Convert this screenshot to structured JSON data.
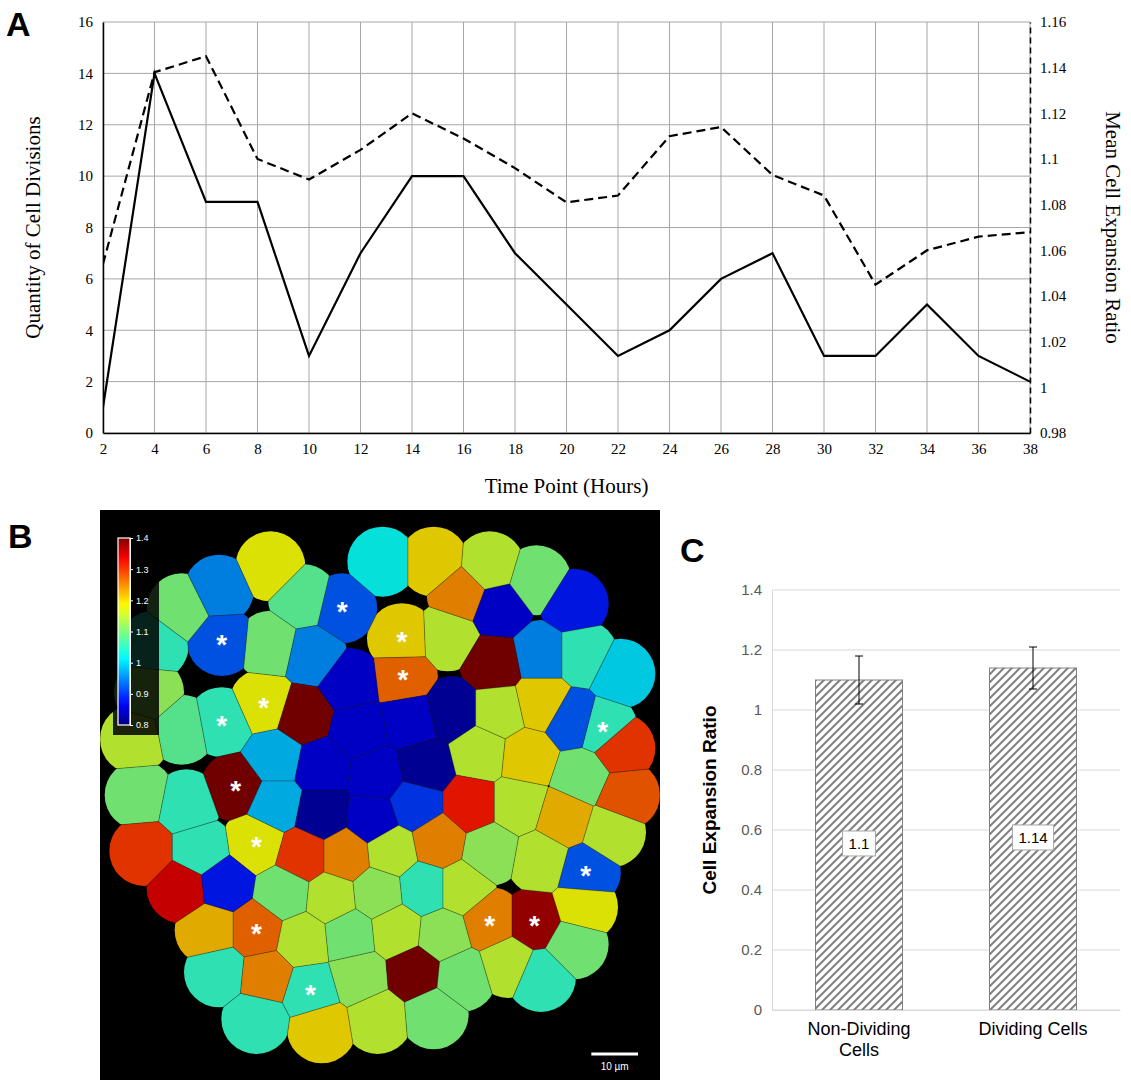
{
  "chart_data": [
    {
      "panel_label": "A",
      "type": "line",
      "x": [
        2,
        4,
        6,
        8,
        10,
        12,
        14,
        16,
        18,
        20,
        22,
        24,
        26,
        28,
        30,
        32,
        34,
        36,
        38
      ],
      "xlabel": "Time Point (Hours)",
      "ylabel": "Quantity of Cell Divisions",
      "y2label": "Mean Cell Expansion Ratio",
      "xlim": [
        2,
        38
      ],
      "xticks": [
        2,
        4,
        6,
        8,
        10,
        12,
        14,
        16,
        18,
        20,
        22,
        24,
        26,
        28,
        30,
        32,
        34,
        36,
        38
      ],
      "ylim": [
        0,
        16
      ],
      "yticks": [
        0,
        2,
        4,
        6,
        8,
        10,
        12,
        14,
        16
      ],
      "y2lim": [
        0.98,
        1.16
      ],
      "y2ticks": [
        0.98,
        1,
        1.02,
        1.04,
        1.06,
        1.08,
        1.1,
        1.12,
        1.14,
        1.16
      ],
      "grid": true,
      "series": [
        {
          "color": "#000000",
          "line_style": "solid",
          "values": [
            1,
            14,
            9,
            9,
            3,
            7,
            10,
            10,
            7,
            5,
            3,
            4,
            6,
            7,
            3,
            3,
            5,
            3,
            2
          ]
        },
        {
          "color": "#000000",
          "line_style": "dashed",
          "axis": "y2",
          "values": [
            1.054,
            1.138,
            1.145,
            1.1,
            1.091,
            1.104,
            1.12,
            1.109,
            1.096,
            1.081,
            1.084,
            1.11,
            1.114,
            1.093,
            1.084,
            1.045,
            1.06,
            1.066,
            1.068
          ]
        }
      ]
    },
    {
      "panel_label": "B",
      "type": "cell_map",
      "marker_label": "*",
      "colorbar": {
        "range": [
          0.8,
          1.4
        ],
        "ticks": [
          0.8,
          0.9,
          1,
          1.1,
          1.2,
          1.3,
          1.4
        ]
      },
      "scale_bar": {
        "value": 10,
        "label": "10 µm"
      },
      "cells": [
        {
          "x": 48.4,
          "y": 16,
          "value": 0.92,
          "marked": true
        },
        {
          "x": 22.6,
          "y": 23,
          "value": 0.92,
          "marked": true
        },
        {
          "x": 61.2,
          "y": 22.4,
          "value": 1.2,
          "marked": true
        },
        {
          "x": 31.6,
          "y": 36.4,
          "value": 1.18,
          "marked": true
        },
        {
          "x": 22.6,
          "y": 40.4,
          "value": 1.05,
          "marked": true
        },
        {
          "x": 61.4,
          "y": 30.6,
          "value": 1.27,
          "marked": true
        },
        {
          "x": 104.2,
          "y": 41.6,
          "value": 1.05,
          "marked": true
        },
        {
          "x": 25.6,
          "y": 54.2,
          "value": 1.4,
          "marked": true
        },
        {
          "x": 30,
          "y": 66.2,
          "value": 1.18,
          "marked": true
        },
        {
          "x": 100.6,
          "y": 72.6,
          "value": 0.92,
          "marked": true
        },
        {
          "x": 30,
          "y": 85,
          "value": 1.27,
          "marked": true
        },
        {
          "x": 80,
          "y": 83.2,
          "value": 1.25,
          "marked": true
        },
        {
          "x": 89.6,
          "y": 83.2,
          "value": 1.38,
          "marked": true
        },
        {
          "x": 41.6,
          "y": 98,
          "value": 1.05,
          "marked": true
        },
        {
          "x": 33,
          "y": 7,
          "value": 1.18,
          "marked": false
        },
        {
          "x": 40,
          "y": 14,
          "value": 1.08,
          "marked": false
        },
        {
          "x": 57,
          "y": 6,
          "value": 1.02,
          "marked": false
        },
        {
          "x": 68,
          "y": 6,
          "value": 1.2,
          "marked": false
        },
        {
          "x": 74,
          "y": 13,
          "value": 1.25,
          "marked": false
        },
        {
          "x": 80,
          "y": 7,
          "value": 1.15,
          "marked": false
        },
        {
          "x": 82,
          "y": 16,
          "value": 0.85,
          "marked": false
        },
        {
          "x": 90,
          "y": 10,
          "value": 1.1,
          "marked": false
        },
        {
          "x": 98,
          "y": 15,
          "value": 0.88,
          "marked": false
        },
        {
          "x": 14,
          "y": 16,
          "value": 1.1,
          "marked": false
        },
        {
          "x": 22,
          "y": 12,
          "value": 0.95,
          "marked": false
        },
        {
          "x": 8,
          "y": 24,
          "value": 1.05,
          "marked": false
        },
        {
          "x": 33,
          "y": 24,
          "value": 1.1,
          "marked": false
        },
        {
          "x": 42,
          "y": 26,
          "value": 0.95,
          "marked": false
        },
        {
          "x": 71,
          "y": 22,
          "value": 1.15,
          "marked": false
        },
        {
          "x": 81,
          "y": 28,
          "value": 1.4,
          "marked": false
        },
        {
          "x": 91,
          "y": 26,
          "value": 0.95,
          "marked": false
        },
        {
          "x": 100,
          "y": 26,
          "value": 1.05,
          "marked": false
        },
        {
          "x": 108,
          "y": 30,
          "value": 1.0,
          "marked": false
        },
        {
          "x": 7,
          "y": 34,
          "value": 1.12,
          "marked": false
        },
        {
          "x": 40,
          "y": 39,
          "value": 1.4,
          "marked": false
        },
        {
          "x": 50,
          "y": 32,
          "value": 0.85,
          "marked": false
        },
        {
          "x": 52,
          "y": 42,
          "value": 0.85,
          "marked": false
        },
        {
          "x": 63,
          "y": 40,
          "value": 0.85,
          "marked": false
        },
        {
          "x": 72,
          "y": 38,
          "value": 0.82,
          "marked": false
        },
        {
          "x": 82,
          "y": 38,
          "value": 1.15,
          "marked": false
        },
        {
          "x": 91,
          "y": 36,
          "value": 1.2,
          "marked": false
        },
        {
          "x": 98,
          "y": 40,
          "value": 0.92,
          "marked": false
        },
        {
          "x": 108,
          "y": 46,
          "value": 1.3,
          "marked": false
        },
        {
          "x": 4,
          "y": 44,
          "value": 1.15,
          "marked": false
        },
        {
          "x": 14,
          "y": 42,
          "value": 1.08,
          "marked": false
        },
        {
          "x": 34,
          "y": 48,
          "value": 0.98,
          "marked": false
        },
        {
          "x": 44,
          "y": 50,
          "value": 0.85,
          "marked": false
        },
        {
          "x": 56,
          "y": 52,
          "value": 0.85,
          "marked": false
        },
        {
          "x": 66,
          "y": 50,
          "value": 0.82,
          "marked": false
        },
        {
          "x": 78,
          "y": 47,
          "value": 1.15,
          "marked": false
        },
        {
          "x": 88,
          "y": 48,
          "value": 1.2,
          "marked": false
        },
        {
          "x": 100,
          "y": 52,
          "value": 1.1,
          "marked": false
        },
        {
          "x": 109,
          "y": 56,
          "value": 1.28,
          "marked": false
        },
        {
          "x": 5,
          "y": 56,
          "value": 1.1,
          "marked": false
        },
        {
          "x": 15,
          "y": 58,
          "value": 1.05,
          "marked": false
        },
        {
          "x": 34,
          "y": 58,
          "value": 0.98,
          "marked": false
        },
        {
          "x": 44,
          "y": 60,
          "value": 0.82,
          "marked": false
        },
        {
          "x": 55,
          "y": 61,
          "value": 0.85,
          "marked": false
        },
        {
          "x": 64,
          "y": 58,
          "value": 0.9,
          "marked": false
        },
        {
          "x": 76,
          "y": 58,
          "value": 1.32,
          "marked": false
        },
        {
          "x": 86,
          "y": 58,
          "value": 1.15,
          "marked": false
        },
        {
          "x": 96,
          "y": 61,
          "value": 1.22,
          "marked": false
        },
        {
          "x": 106,
          "y": 64,
          "value": 1.15,
          "marked": false
        },
        {
          "x": 6,
          "y": 68,
          "value": 1.3,
          "marked": false
        },
        {
          "x": 18,
          "y": 68,
          "value": 1.05,
          "marked": false
        },
        {
          "x": 40,
          "y": 69,
          "value": 1.3,
          "marked": false
        },
        {
          "x": 49,
          "y": 69,
          "value": 1.25,
          "marked": false
        },
        {
          "x": 59,
          "y": 68,
          "value": 1.15,
          "marked": false
        },
        {
          "x": 69,
          "y": 66,
          "value": 1.25,
          "marked": false
        },
        {
          "x": 80,
          "y": 68,
          "value": 1.12,
          "marked": false
        },
        {
          "x": 91,
          "y": 70,
          "value": 1.15,
          "marked": false
        },
        {
          "x": 14,
          "y": 76,
          "value": 1.35,
          "marked": false
        },
        {
          "x": 23,
          "y": 75,
          "value": 0.88,
          "marked": false
        },
        {
          "x": 36,
          "y": 77,
          "value": 1.1,
          "marked": false
        },
        {
          "x": 46,
          "y": 78,
          "value": 1.15,
          "marked": false
        },
        {
          "x": 56,
          "y": 77,
          "value": 1.12,
          "marked": false
        },
        {
          "x": 66,
          "y": 76,
          "value": 1.05,
          "marked": false
        },
        {
          "x": 74,
          "y": 76,
          "value": 1.15,
          "marked": false
        },
        {
          "x": 100,
          "y": 80,
          "value": 1.18,
          "marked": false
        },
        {
          "x": 20,
          "y": 85,
          "value": 1.22,
          "marked": false
        },
        {
          "x": 40,
          "y": 87,
          "value": 1.15,
          "marked": false
        },
        {
          "x": 50,
          "y": 86,
          "value": 1.1,
          "marked": false
        },
        {
          "x": 60,
          "y": 85,
          "value": 1.15,
          "marked": false
        },
        {
          "x": 70,
          "y": 86,
          "value": 1.12,
          "marked": false
        },
        {
          "x": 98,
          "y": 88,
          "value": 1.1,
          "marked": false
        },
        {
          "x": 22,
          "y": 94,
          "value": 1.05,
          "marked": false
        },
        {
          "x": 32,
          "y": 95,
          "value": 1.25,
          "marked": false
        },
        {
          "x": 52,
          "y": 95,
          "value": 1.12,
          "marked": false
        },
        {
          "x": 64,
          "y": 94,
          "value": 1.4,
          "marked": false
        },
        {
          "x": 74,
          "y": 95,
          "value": 1.1,
          "marked": false
        },
        {
          "x": 84,
          "y": 92,
          "value": 1.15,
          "marked": false
        },
        {
          "x": 91,
          "y": 95,
          "value": 1.05,
          "marked": false
        },
        {
          "x": 30,
          "y": 104,
          "value": 1.05,
          "marked": false
        },
        {
          "x": 44,
          "y": 106,
          "value": 1.2,
          "marked": false
        },
        {
          "x": 56,
          "y": 104,
          "value": 1.15,
          "marked": false
        },
        {
          "x": 68,
          "y": 103,
          "value": 1.1,
          "marked": false
        }
      ]
    },
    {
      "panel_label": "C",
      "type": "bar",
      "categories": [
        "Non-Dividing Cells",
        "Dividing Cells"
      ],
      "values": [
        1.1,
        1.14
      ],
      "errors": [
        0.08,
        0.07
      ],
      "ylabel": "Cell Expansion Ratio",
      "ylim": [
        0,
        1.4
      ],
      "yticks": [
        0,
        0.2,
        0.4,
        0.6,
        0.8,
        1,
        1.2,
        1.4
      ],
      "grid": true,
      "data_labels": true,
      "color": "#808080"
    }
  ]
}
